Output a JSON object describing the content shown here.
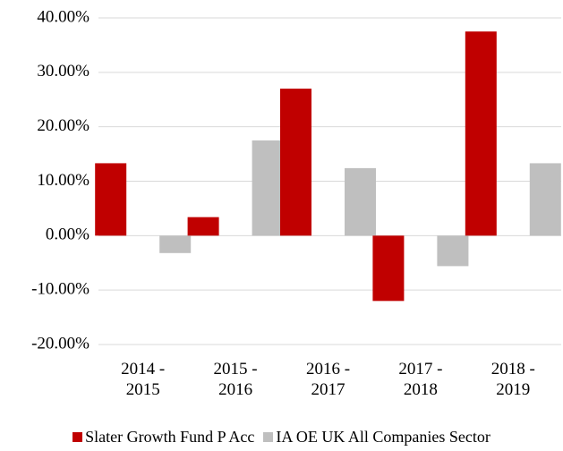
{
  "chart_data": {
    "type": "bar",
    "categories": [
      "2014 - 2015",
      "2015 - 2016",
      "2016 - 2017",
      "2017 - 2018",
      "2018 - 2019"
    ],
    "series": [
      {
        "name": "Slater Growth Fund P Acc",
        "color": "#c00000",
        "values": [
          13.3,
          3.4,
          27.0,
          -12.0,
          37.5
        ]
      },
      {
        "name": "IA OE UK All Companies Sector",
        "color": "#bfbfbf",
        "values": [
          -3.2,
          17.5,
          12.4,
          -5.6,
          13.3
        ]
      }
    ],
    "ylim": [
      -20,
      40
    ],
    "yticks": [
      {
        "value": -20,
        "label": "-20.00%"
      },
      {
        "value": -10,
        "label": "-10.00%"
      },
      {
        "value": 0,
        "label": "0.00%"
      },
      {
        "value": 10,
        "label": "10.00%"
      },
      {
        "value": 20,
        "label": "20.00%"
      },
      {
        "value": 30,
        "label": "30.00%"
      },
      {
        "value": 40,
        "label": "40.00%"
      }
    ],
    "grid": true,
    "legend": "bottom"
  }
}
